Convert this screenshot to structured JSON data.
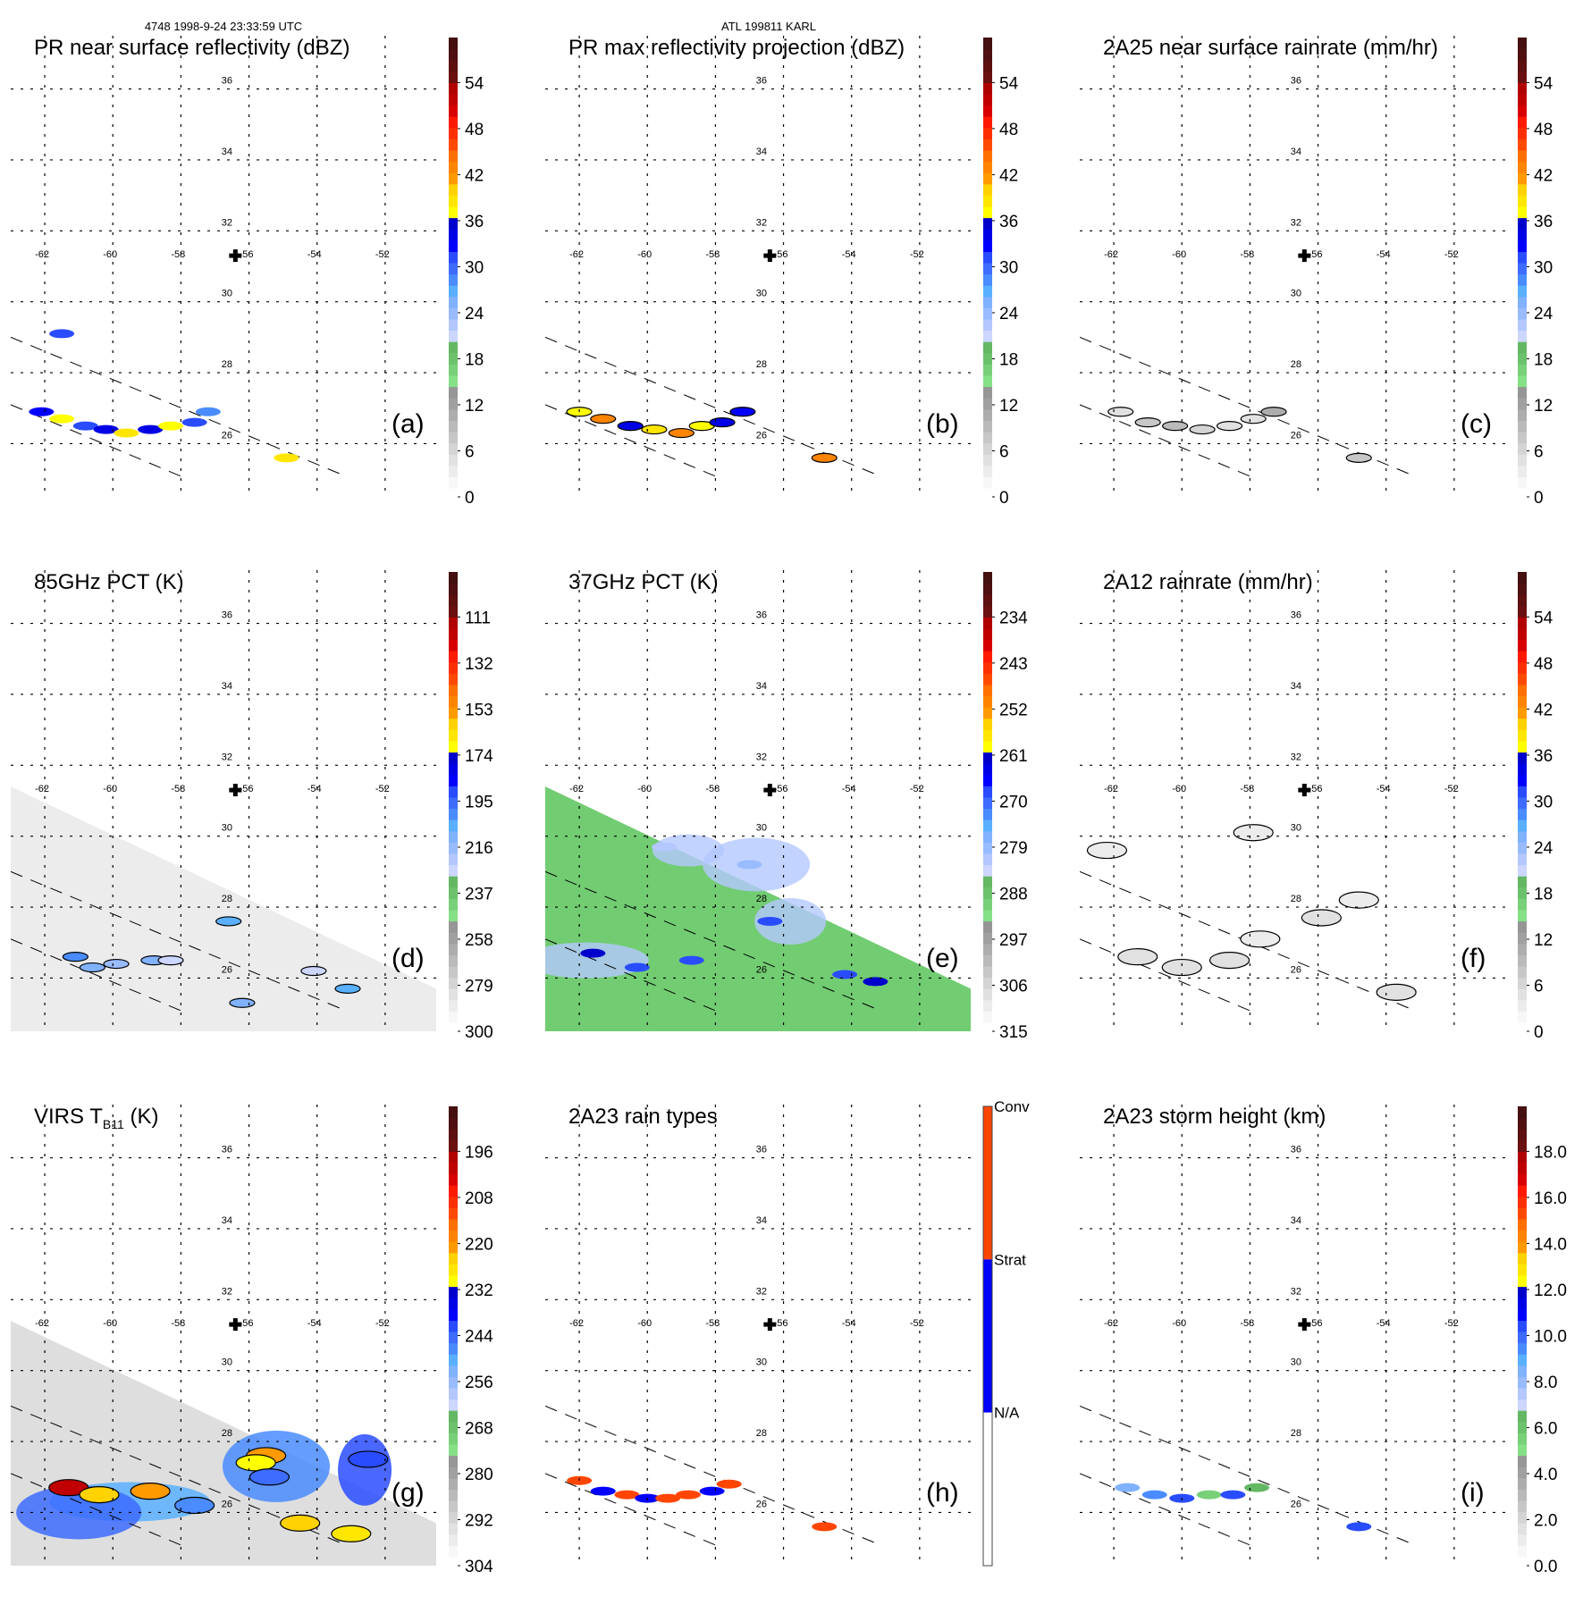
{
  "header": {
    "left": "4748 1998-9-24 23:33:59 UTC",
    "center": "ATL 199811 KARL"
  },
  "map": {
    "lon_ticks": [
      "-62",
      "-60",
      "-58",
      "-56",
      "-54",
      "-52"
    ],
    "lat_ticks": [
      "36",
      "34",
      "32",
      "30",
      "28",
      "26"
    ],
    "lon_range": [
      -63,
      -50.5
    ],
    "lat_range": [
      24.5,
      37.5
    ],
    "storm_center": {
      "lon": -56.4,
      "lat": 31.3,
      "icon": "plus-marker-icon"
    }
  },
  "palette": {
    "dbz": [
      "#f7f7f7",
      "#ececec",
      "#e1e1e1",
      "#d4d4d4",
      "#c7c7c7",
      "#bababa",
      "#adadad",
      "#a0a0a0",
      "#969696",
      "#86e086",
      "#78d078",
      "#6cc26c",
      "#64b864",
      "#ccd6ff",
      "#b4c8ff",
      "#99bbff",
      "#80b2ff",
      "#5ab0ff",
      "#4a8cff",
      "#3d6cff",
      "#2a4cff",
      "#0000ff",
      "#0000e6",
      "#0000cc",
      "#ffff00",
      "#ffe600",
      "#ffd200",
      "#ff9a00",
      "#ff8400",
      "#ff7000",
      "#ff4a00",
      "#ff3000",
      "#ff1a00",
      "#d80000",
      "#c00000",
      "#b00000",
      "#6a1010",
      "#5c1010",
      "#4e1010",
      "#441010"
    ],
    "rain_type": {
      "Conv": "#ff4500",
      "Strat": "#0000ff",
      "N/A": "#ffffff"
    }
  },
  "chart_data": [
    {
      "id": "a",
      "type": "heatmap",
      "title": "PR near surface reflectivity (dBZ)",
      "panel_label": "(a)",
      "colorbar": {
        "ticks": [
          "54",
          "48",
          "42",
          "36",
          "30",
          "24",
          "18",
          "12",
          "6",
          "0"
        ],
        "range": [
          0,
          60
        ]
      },
      "field": "swath-narrow",
      "features": [
        {
          "lon": -62.1,
          "lat": 26.9,
          "value": 32
        },
        {
          "lon": -61.5,
          "lat": 26.7,
          "value": 36
        },
        {
          "lon": -60.8,
          "lat": 26.5,
          "value": 30
        },
        {
          "lon": -60.2,
          "lat": 26.4,
          "value": 33
        },
        {
          "lon": -59.6,
          "lat": 26.3,
          "value": 38
        },
        {
          "lon": -58.9,
          "lat": 26.4,
          "value": 34
        },
        {
          "lon": -58.3,
          "lat": 26.5,
          "value": 36
        },
        {
          "lon": -57.6,
          "lat": 26.6,
          "value": 30
        },
        {
          "lon": -57.2,
          "lat": 26.9,
          "value": 28
        },
        {
          "lon": -54.9,
          "lat": 25.6,
          "value": 38
        },
        {
          "lon": -61.5,
          "lat": 29.1,
          "value": 30
        }
      ]
    },
    {
      "id": "b",
      "type": "heatmap",
      "title": "PR max reflectivity projection (dBZ)",
      "panel_label": "(b)",
      "colorbar": {
        "ticks": [
          "54",
          "48",
          "42",
          "36",
          "30",
          "24",
          "18",
          "12",
          "6",
          "0"
        ],
        "range": [
          0,
          60
        ]
      },
      "field": "swath-narrow",
      "features": [
        {
          "lon": -62.0,
          "lat": 26.9,
          "value": 36
        },
        {
          "lon": -61.3,
          "lat": 26.7,
          "value": 42
        },
        {
          "lon": -60.5,
          "lat": 26.5,
          "value": 34
        },
        {
          "lon": -59.8,
          "lat": 26.4,
          "value": 38
        },
        {
          "lon": -59.0,
          "lat": 26.3,
          "value": 42
        },
        {
          "lon": -58.4,
          "lat": 26.5,
          "value": 36
        },
        {
          "lon": -57.8,
          "lat": 26.6,
          "value": 34
        },
        {
          "lon": -57.2,
          "lat": 26.9,
          "value": 32
        },
        {
          "lon": -54.8,
          "lat": 25.6,
          "value": 42
        }
      ]
    },
    {
      "id": "c",
      "type": "heatmap",
      "title": "2A25 near surface rainrate (mm/hr)",
      "panel_label": "(c)",
      "colorbar": {
        "ticks": [
          "54",
          "48",
          "42",
          "36",
          "30",
          "24",
          "18",
          "12",
          "6",
          "0"
        ],
        "range": [
          0,
          60
        ]
      },
      "field": "swath-narrow",
      "features": [
        {
          "lon": -61.8,
          "lat": 26.9,
          "value": 4
        },
        {
          "lon": -61.0,
          "lat": 26.6,
          "value": 6
        },
        {
          "lon": -60.2,
          "lat": 26.5,
          "value": 8
        },
        {
          "lon": -59.4,
          "lat": 26.4,
          "value": 5
        },
        {
          "lon": -58.6,
          "lat": 26.5,
          "value": 4
        },
        {
          "lon": -57.9,
          "lat": 26.7,
          "value": 3
        },
        {
          "lon": -57.3,
          "lat": 26.9,
          "value": 10
        },
        {
          "lon": -54.8,
          "lat": 25.6,
          "value": 6
        }
      ]
    },
    {
      "id": "d",
      "type": "heatmap",
      "title": "85GHz PCT (K)",
      "panel_label": "(d)",
      "colorbar": {
        "ticks": [
          "111",
          "132",
          "153",
          "174",
          "195",
          "216",
          "237",
          "258",
          "279",
          "300"
        ],
        "range": [
          90,
          300
        ]
      },
      "field": "swath-wide-gray",
      "features": [
        {
          "lon": -61.1,
          "lat": 26.6,
          "value": 205
        },
        {
          "lon": -60.6,
          "lat": 26.3,
          "value": 215
        },
        {
          "lon": -59.9,
          "lat": 26.4,
          "value": 220
        },
        {
          "lon": -58.8,
          "lat": 26.5,
          "value": 215
        },
        {
          "lon": -58.3,
          "lat": 26.5,
          "value": 230
        },
        {
          "lon": -56.6,
          "lat": 27.6,
          "value": 210
        },
        {
          "lon": -54.1,
          "lat": 26.2,
          "value": 230
        },
        {
          "lon": -53.1,
          "lat": 25.7,
          "value": 210
        },
        {
          "lon": -56.2,
          "lat": 25.3,
          "value": 215
        }
      ]
    },
    {
      "id": "e",
      "type": "heatmap",
      "title": "37GHz PCT (K)",
      "panel_label": "(e)",
      "colorbar": {
        "ticks": [
          "234",
          "243",
          "252",
          "261",
          "270",
          "279",
          "288",
          "297",
          "306",
          "315"
        ],
        "range": [
          225,
          315
        ]
      },
      "field": "swath-wide-green",
      "features": [
        {
          "lon": -61.6,
          "lat": 26.7,
          "value": 262
        },
        {
          "lon": -60.3,
          "lat": 26.3,
          "value": 270
        },
        {
          "lon": -58.7,
          "lat": 26.5,
          "value": 270
        },
        {
          "lon": -56.4,
          "lat": 27.6,
          "value": 268
        },
        {
          "lon": -54.2,
          "lat": 26.1,
          "value": 268
        },
        {
          "lon": -53.3,
          "lat": 25.9,
          "value": 262
        },
        {
          "lon": -57.0,
          "lat": 29.2,
          "value": 280
        },
        {
          "lon": -59.5,
          "lat": 29.7,
          "value": 282
        }
      ]
    },
    {
      "id": "f",
      "type": "heatmap",
      "title": "2A12 rainrate (mm/hr)",
      "panel_label": "(f)",
      "colorbar": {
        "ticks": [
          "54",
          "48",
          "42",
          "36",
          "30",
          "24",
          "18",
          "12",
          "6",
          "0"
        ],
        "range": [
          0,
          60
        ]
      },
      "field": "swath-contours",
      "features": [
        {
          "lon": -61.3,
          "lat": 26.6,
          "value": 4
        },
        {
          "lon": -60.0,
          "lat": 26.3,
          "value": 3
        },
        {
          "lon": -58.6,
          "lat": 26.5,
          "value": 3
        },
        {
          "lon": -57.7,
          "lat": 27.1,
          "value": 2
        },
        {
          "lon": -55.9,
          "lat": 27.7,
          "value": 4
        },
        {
          "lon": -54.8,
          "lat": 28.2,
          "value": 2
        },
        {
          "lon": -53.7,
          "lat": 25.6,
          "value": 4
        },
        {
          "lon": -57.9,
          "lat": 30.1,
          "value": 2
        },
        {
          "lon": -62.2,
          "lat": 29.6,
          "value": 2
        }
      ]
    },
    {
      "id": "g",
      "type": "heatmap",
      "title": "VIRS T",
      "title_sub": "B11",
      "title_unit": " (K)",
      "panel_label": "(g)",
      "colorbar": {
        "ticks": [
          "196",
          "208",
          "220",
          "232",
          "244",
          "256",
          "268",
          "280",
          "292",
          "304"
        ],
        "range": [
          184,
          304
        ]
      },
      "field": "swath-wide-virs",
      "features": [
        {
          "lon": -61.3,
          "lat": 26.7,
          "value": 200
        },
        {
          "lon": -60.4,
          "lat": 26.5,
          "value": 225
        },
        {
          "lon": -58.9,
          "lat": 26.6,
          "value": 222
        },
        {
          "lon": -55.5,
          "lat": 27.6,
          "value": 222
        },
        {
          "lon": -55.8,
          "lat": 27.4,
          "value": 230
        },
        {
          "lon": -54.5,
          "lat": 25.7,
          "value": 225
        },
        {
          "lon": -53.0,
          "lat": 25.4,
          "value": 228
        },
        {
          "lon": -52.5,
          "lat": 27.5,
          "value": 244
        },
        {
          "lon": -55.4,
          "lat": 27.0,
          "value": 245
        },
        {
          "lon": -57.6,
          "lat": 26.2,
          "value": 250
        }
      ]
    },
    {
      "id": "h",
      "type": "heatmap",
      "title": "2A23 rain types",
      "panel_label": "(h)",
      "colorbar": {
        "ticks": [
          "Conv",
          "Strat",
          "N/A"
        ],
        "categories": [
          "Conv",
          "Strat",
          "N/A"
        ]
      },
      "field": "swath-narrow",
      "features": [
        {
          "lon": -62.0,
          "lat": 26.9,
          "value": "Conv"
        },
        {
          "lon": -61.3,
          "lat": 26.6,
          "value": "Strat"
        },
        {
          "lon": -60.6,
          "lat": 26.5,
          "value": "Conv"
        },
        {
          "lon": -60.0,
          "lat": 26.4,
          "value": "Strat"
        },
        {
          "lon": -59.4,
          "lat": 26.4,
          "value": "Conv"
        },
        {
          "lon": -58.8,
          "lat": 26.5,
          "value": "Conv"
        },
        {
          "lon": -58.1,
          "lat": 26.6,
          "value": "Strat"
        },
        {
          "lon": -57.6,
          "lat": 26.8,
          "value": "Conv"
        },
        {
          "lon": -54.8,
          "lat": 25.6,
          "value": "Conv"
        }
      ]
    },
    {
      "id": "i",
      "type": "heatmap",
      "title": "2A23 storm height (km)",
      "panel_label": "(i)",
      "colorbar": {
        "ticks": [
          "18.0",
          "16.0",
          "14.0",
          "12.0",
          "10.0",
          "8.0",
          "6.0",
          "4.0",
          "2.0",
          "0.0"
        ],
        "range": [
          0,
          20
        ]
      },
      "field": "swath-narrow",
      "features": [
        {
          "lon": -61.6,
          "lat": 26.7,
          "value": 8
        },
        {
          "lon": -60.8,
          "lat": 26.5,
          "value": 9
        },
        {
          "lon": -60.0,
          "lat": 26.4,
          "value": 10
        },
        {
          "lon": -59.2,
          "lat": 26.5,
          "value": 5
        },
        {
          "lon": -58.5,
          "lat": 26.5,
          "value": 10
        },
        {
          "lon": -57.8,
          "lat": 26.7,
          "value": 6
        },
        {
          "lon": -54.8,
          "lat": 25.6,
          "value": 10
        }
      ]
    }
  ]
}
